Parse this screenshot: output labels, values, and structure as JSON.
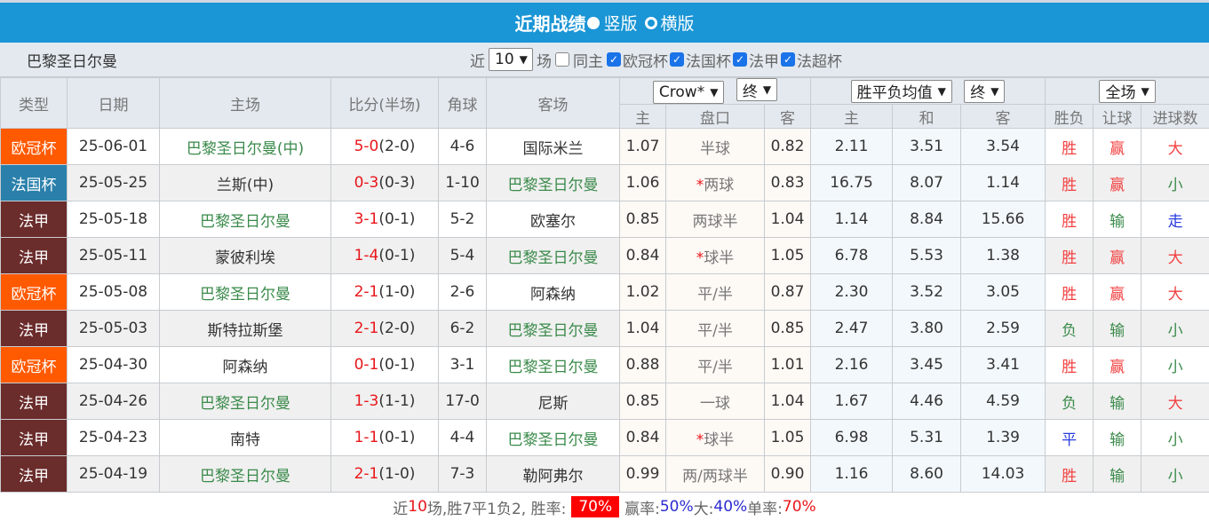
{
  "title": {
    "text": "近期战绩",
    "opt1": "竖版",
    "opt2": "横版",
    "selected": "竖版"
  },
  "filter": {
    "team": "巴黎圣日尔曼",
    "near": "近",
    "count": "10",
    "games": "场",
    "same_home": "同主",
    "checks": [
      {
        "label": "欧冠杯",
        "checked": true
      },
      {
        "label": "法国杯",
        "checked": true
      },
      {
        "label": "法甲",
        "checked": true
      },
      {
        "label": "法超杯",
        "checked": true
      }
    ]
  },
  "header": {
    "type": "类型",
    "date": "日期",
    "home": "主场",
    "score": "比分(半场)",
    "corner": "角球",
    "away": "客场",
    "company": "Crow*",
    "ah_stage": "终",
    "odds_type": "胜平负均值",
    "odds_stage": "终",
    "scope": "全场",
    "sub": [
      "主",
      "盘口",
      "客",
      "主",
      "和",
      "客",
      "胜负",
      "让球",
      "进球数"
    ]
  },
  "type_colors": {
    "欧冠杯": "#ff5a00",
    "法国杯": "#2a80ab",
    "法甲": "#6b2c2c"
  },
  "rows": [
    {
      "type": "欧冠杯",
      "date": "25-06-01",
      "home": "巴黎圣日尔曼(中)",
      "home_psg": true,
      "ft": "5-0",
      "ht": "(2-0)",
      "corner": "4-6",
      "away": "国际米兰",
      "away_psg": false,
      "ah_h": "1.07",
      "ah_star": "",
      "ah": "半球",
      "ah_a": "0.82",
      "o_h": "2.11",
      "o_d": "3.51",
      "o_a": "3.54",
      "wl": "胜",
      "hc": "赢",
      "ou": "大"
    },
    {
      "type": "法国杯",
      "date": "25-05-25",
      "home": "兰斯(中)",
      "home_psg": false,
      "ft": "0-3",
      "ht": "(0-3)",
      "corner": "1-10",
      "away": "巴黎圣日尔曼",
      "away_psg": true,
      "ah_h": "1.06",
      "ah_star": "*",
      "ah": "两球",
      "ah_a": "0.83",
      "o_h": "16.75",
      "o_d": "8.07",
      "o_a": "1.14",
      "wl": "胜",
      "hc": "赢",
      "ou": "小"
    },
    {
      "type": "法甲",
      "date": "25-05-18",
      "home": "巴黎圣日尔曼",
      "home_psg": true,
      "ft": "3-1",
      "ht": "(0-1)",
      "corner": "5-2",
      "away": "欧塞尔",
      "away_psg": false,
      "ah_h": "0.85",
      "ah_star": "",
      "ah": "两球半",
      "ah_a": "1.04",
      "o_h": "1.14",
      "o_d": "8.84",
      "o_a": "15.66",
      "wl": "胜",
      "hc": "输",
      "ou": "走"
    },
    {
      "type": "法甲",
      "date": "25-05-11",
      "home": "蒙彼利埃",
      "home_psg": false,
      "ft": "1-4",
      "ht": "(0-1)",
      "corner": "5-4",
      "away": "巴黎圣日尔曼",
      "away_psg": true,
      "ah_h": "0.84",
      "ah_star": "*",
      "ah": "球半",
      "ah_a": "1.05",
      "o_h": "6.78",
      "o_d": "5.53",
      "o_a": "1.38",
      "wl": "胜",
      "hc": "赢",
      "ou": "大"
    },
    {
      "type": "欧冠杯",
      "date": "25-05-08",
      "home": "巴黎圣日尔曼",
      "home_psg": true,
      "ft": "2-1",
      "ht": "(1-0)",
      "corner": "2-6",
      "away": "阿森纳",
      "away_psg": false,
      "ah_h": "1.02",
      "ah_star": "",
      "ah": "平/半",
      "ah_a": "0.87",
      "o_h": "2.30",
      "o_d": "3.52",
      "o_a": "3.05",
      "wl": "胜",
      "hc": "赢",
      "ou": "大"
    },
    {
      "type": "法甲",
      "date": "25-05-03",
      "home": "斯特拉斯堡",
      "home_psg": false,
      "ft": "2-1",
      "ht": "(2-0)",
      "corner": "6-2",
      "away": "巴黎圣日尔曼",
      "away_psg": true,
      "ah_h": "1.04",
      "ah_star": "",
      "ah": "平/半",
      "ah_a": "0.85",
      "o_h": "2.47",
      "o_d": "3.80",
      "o_a": "2.59",
      "wl": "负",
      "hc": "输",
      "ou": "小"
    },
    {
      "type": "欧冠杯",
      "date": "25-04-30",
      "home": "阿森纳",
      "home_psg": false,
      "ft": "0-1",
      "ht": "(0-1)",
      "corner": "3-1",
      "away": "巴黎圣日尔曼",
      "away_psg": true,
      "ah_h": "0.88",
      "ah_star": "",
      "ah": "平/半",
      "ah_a": "1.01",
      "o_h": "2.16",
      "o_d": "3.45",
      "o_a": "3.41",
      "wl": "胜",
      "hc": "赢",
      "ou": "小"
    },
    {
      "type": "法甲",
      "date": "25-04-26",
      "home": "巴黎圣日尔曼",
      "home_psg": true,
      "ft": "1-3",
      "ht": "(1-1)",
      "corner": "17-0",
      "away": "尼斯",
      "away_psg": false,
      "ah_h": "0.85",
      "ah_star": "",
      "ah": "一球",
      "ah_a": "1.04",
      "o_h": "1.67",
      "o_d": "4.46",
      "o_a": "4.59",
      "wl": "负",
      "hc": "输",
      "ou": "大"
    },
    {
      "type": "法甲",
      "date": "25-04-23",
      "home": "南特",
      "home_psg": false,
      "ft": "1-1",
      "ht": "(0-1)",
      "corner": "4-4",
      "away": "巴黎圣日尔曼",
      "away_psg": true,
      "ah_h": "0.84",
      "ah_star": "*",
      "ah": "球半",
      "ah_a": "1.05",
      "o_h": "6.98",
      "o_d": "5.31",
      "o_a": "1.39",
      "wl": "平",
      "hc": "输",
      "ou": "小"
    },
    {
      "type": "法甲",
      "date": "25-04-19",
      "home": "巴黎圣日尔曼",
      "home_psg": true,
      "ft": "2-1",
      "ht": "(1-0)",
      "corner": "7-3",
      "away": "勒阿弗尔",
      "away_psg": false,
      "ah_h": "0.99",
      "ah_star": "",
      "ah": "两/两球半",
      "ah_a": "0.90",
      "o_h": "1.16",
      "o_d": "8.60",
      "o_a": "14.03",
      "wl": "胜",
      "hc": "输",
      "ou": "小"
    }
  ],
  "result_colors": {
    "胜": "r-red",
    "赢": "r-red",
    "大": "r-red",
    "负": "r-green",
    "输": "r-green",
    "小": "r-green",
    "平": "r-blue",
    "走": "r-blue"
  },
  "footer": {
    "p1": "近",
    "n": "10",
    "p2": "场,胜7平1负2, 胜率:",
    "win_rate": "70%",
    "hc_label": " 赢率:",
    "hc_rate": "50%",
    "ou_label": " 大:",
    "ou_rate": "40%",
    "odd_label": " 单率:",
    "odd_rate": "70%"
  }
}
